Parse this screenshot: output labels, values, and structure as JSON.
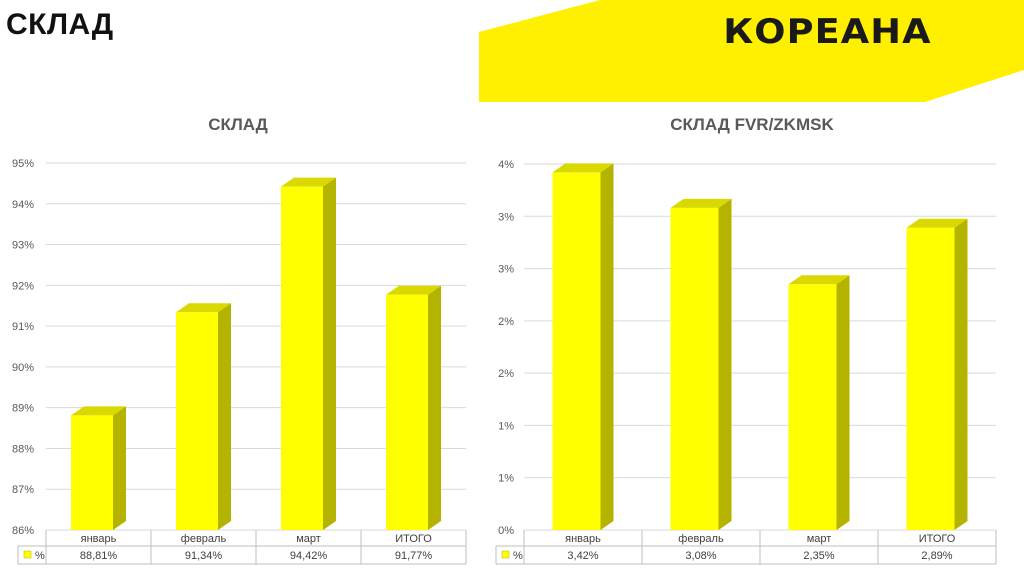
{
  "page": {
    "title": "СКЛАД",
    "brand": "КОРЕАНА"
  },
  "colors": {
    "bar_front": "#ffff00",
    "bar_side": "#b3b300",
    "bar_top": "#d9d900",
    "banner": "#fff000",
    "grid": "#d9d9d9"
  },
  "chart_data": [
    {
      "type": "bar",
      "title": "СКЛАД",
      "categories": [
        "январь",
        "февраль",
        "март",
        "ИТОГО"
      ],
      "series": [
        {
          "name": "%",
          "values": [
            88.81,
            91.34,
            94.42,
            91.77
          ]
        }
      ],
      "value_labels": [
        "88,81%",
        "91,34%",
        "94,42%",
        "91,77%"
      ],
      "yticks": [
        "86%",
        "87%",
        "88%",
        "89%",
        "90%",
        "91%",
        "92%",
        "93%",
        "94%",
        "95%"
      ],
      "ylim": [
        86,
        95
      ],
      "xlabel": "",
      "ylabel": "",
      "grid": true,
      "data_table": true
    },
    {
      "type": "bar",
      "title": "СКЛАД FVR/ZKMSK",
      "categories": [
        "январь",
        "февраль",
        "март",
        "ИТОГО"
      ],
      "series": [
        {
          "name": "%",
          "values": [
            3.42,
            3.08,
            2.35,
            2.89
          ]
        }
      ],
      "value_labels": [
        "3,42%",
        "3,08%",
        "2,35%",
        "2,89%"
      ],
      "yticks": [
        "0%",
        "1%",
        "1%",
        "2%",
        "2%",
        "3%",
        "3%",
        "4%"
      ],
      "ylim": [
        0,
        3.5
      ],
      "xlabel": "",
      "ylabel": "",
      "grid": true,
      "data_table": true
    }
  ]
}
